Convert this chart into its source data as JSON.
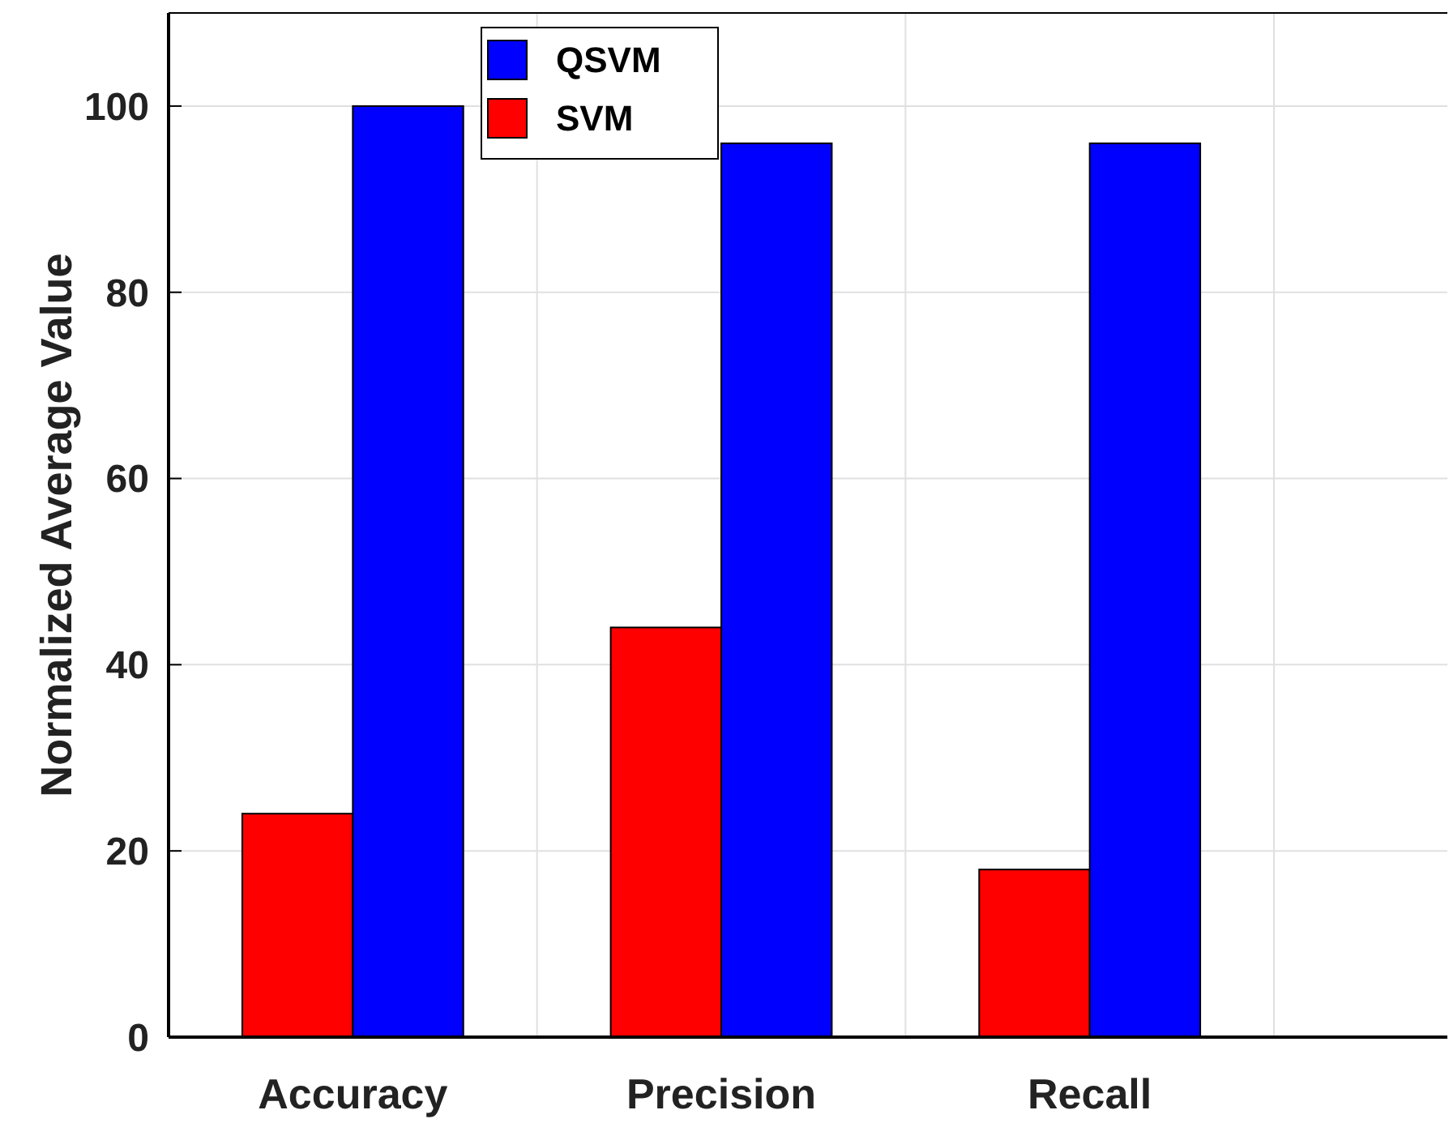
{
  "chart_data": {
    "type": "bar",
    "ylabel": "Normalized Average Value",
    "categories": [
      "Accuracy",
      "Precision",
      "Recall"
    ],
    "series": [
      {
        "name": "SVM",
        "color": "#ff0000",
        "values": [
          24,
          44,
          18
        ]
      },
      {
        "name": "QSVM",
        "color": "#0000ff",
        "values": [
          100,
          96,
          96
        ]
      }
    ],
    "ylim": [
      0,
      110
    ],
    "yticks": [
      0,
      20,
      40,
      60,
      80,
      100
    ],
    "grid": true,
    "legend": "top"
  }
}
